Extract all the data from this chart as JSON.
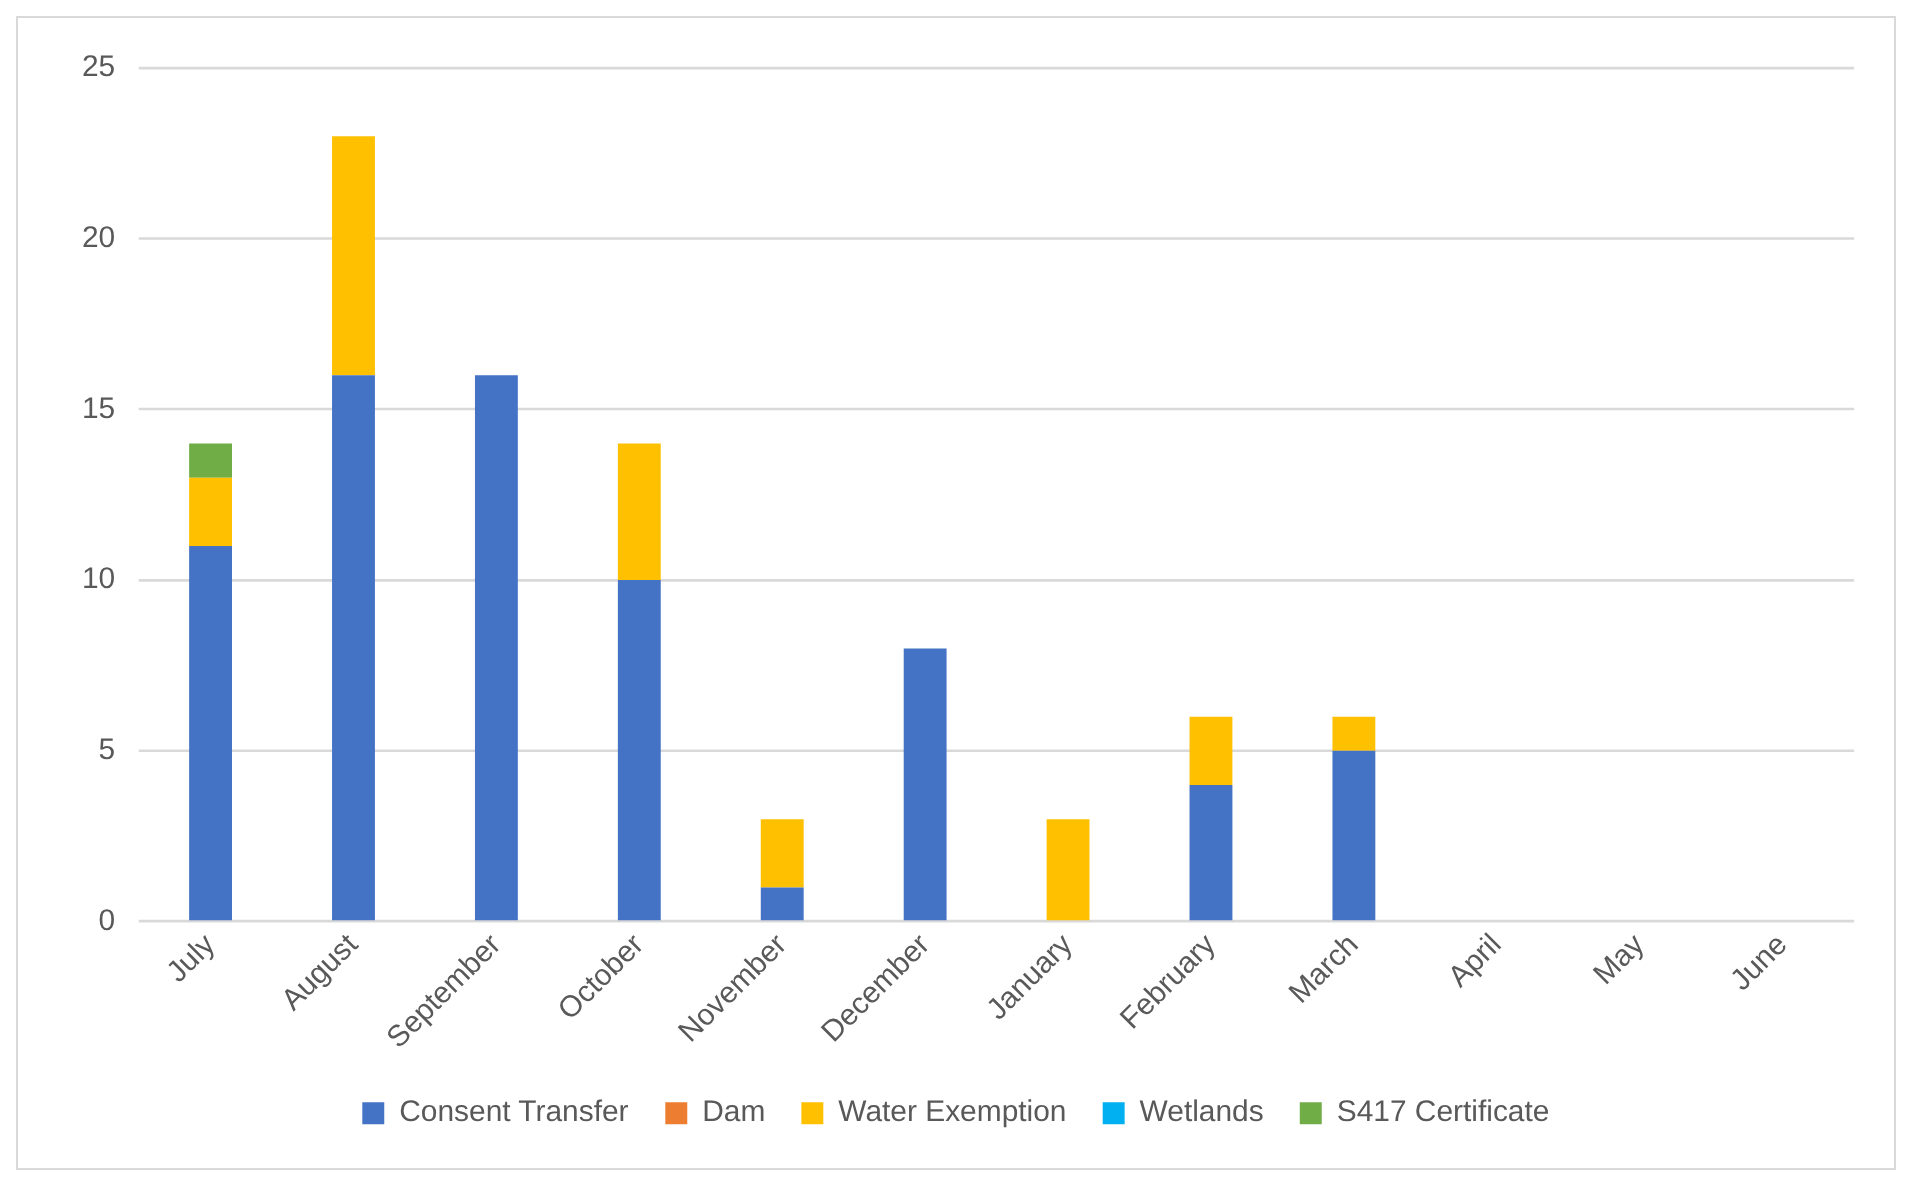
{
  "chart_data": {
    "type": "bar",
    "stacked": true,
    "categories": [
      "July",
      "August",
      "September",
      "October",
      "November",
      "December",
      "January",
      "February",
      "March",
      "April",
      "May",
      "June"
    ],
    "series": [
      {
        "name": "Consent Transfer",
        "color": "#4472c4",
        "values": [
          11,
          16,
          16,
          10,
          1,
          8,
          0,
          4,
          5,
          0,
          0,
          0
        ]
      },
      {
        "name": "Dam",
        "color": "#ed7d31",
        "values": [
          0,
          0,
          0,
          0,
          0,
          0,
          0,
          0,
          0,
          0,
          0,
          0
        ]
      },
      {
        "name": "Water Exemption",
        "color": "#ffc000",
        "values": [
          2,
          7,
          0,
          4,
          2,
          0,
          3,
          2,
          1,
          0,
          0,
          0
        ]
      },
      {
        "name": "Wetlands",
        "color": "#00b0f0",
        "values": [
          0,
          0,
          0,
          0,
          0,
          0,
          0,
          0,
          0,
          0,
          0,
          0
        ]
      },
      {
        "name": "S417 Certificate",
        "color": "#70ad47",
        "values": [
          1,
          0,
          0,
          0,
          0,
          0,
          0,
          0,
          0,
          0,
          0,
          0
        ]
      }
    ],
    "ylim": [
      0,
      25
    ],
    "yticks": [
      0,
      5,
      10,
      15,
      20,
      25
    ],
    "grid": "y",
    "legend": "bottom"
  }
}
